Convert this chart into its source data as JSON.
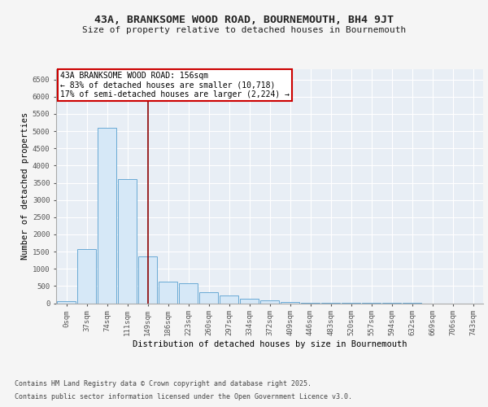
{
  "title": "43A, BRANKSOME WOOD ROAD, BOURNEMOUTH, BH4 9JT",
  "subtitle": "Size of property relative to detached houses in Bournemouth",
  "xlabel": "Distribution of detached houses by size in Bournemouth",
  "ylabel": "Number of detached properties",
  "bar_labels": [
    "0sqm",
    "37sqm",
    "74sqm",
    "111sqm",
    "149sqm",
    "186sqm",
    "223sqm",
    "260sqm",
    "297sqm",
    "334sqm",
    "372sqm",
    "409sqm",
    "446sqm",
    "483sqm",
    "520sqm",
    "557sqm",
    "594sqm",
    "632sqm",
    "669sqm",
    "706sqm",
    "743sqm"
  ],
  "bar_values": [
    50,
    1580,
    5100,
    3600,
    1350,
    620,
    580,
    330,
    220,
    130,
    80,
    40,
    20,
    10,
    5,
    3,
    1,
    1,
    0,
    0,
    0
  ],
  "bar_color": "#d6e8f7",
  "bar_edge_color": "#6aaad4",
  "property_line_x": 4.0,
  "annotation_text": "43A BRANKSOME WOOD ROAD: 156sqm\n← 83% of detached houses are smaller (10,718)\n17% of semi-detached houses are larger (2,224) →",
  "annotation_box_color": "#cc0000",
  "vertical_line_color": "#8b0000",
  "ylim": [
    0,
    6800
  ],
  "yticks": [
    0,
    500,
    1000,
    1500,
    2000,
    2500,
    3000,
    3500,
    4000,
    4500,
    5000,
    5500,
    6000,
    6500
  ],
  "footer_line1": "Contains HM Land Registry data © Crown copyright and database right 2025.",
  "footer_line2": "Contains public sector information licensed under the Open Government Licence v3.0.",
  "background_color": "#e8eef5",
  "grid_color": "#ffffff",
  "fig_bg": "#f5f5f5",
  "title_fontsize": 9.5,
  "subtitle_fontsize": 8,
  "axis_label_fontsize": 7.5,
  "tick_fontsize": 6.5,
  "annotation_fontsize": 7,
  "footer_fontsize": 6
}
